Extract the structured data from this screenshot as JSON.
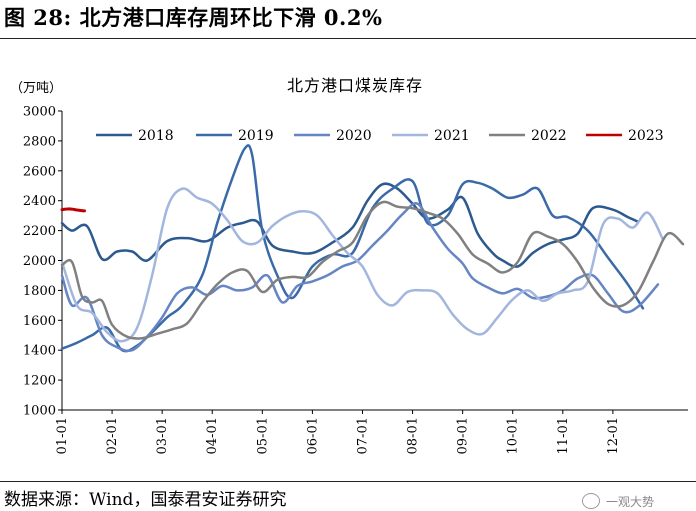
{
  "figure": {
    "label": "图 28:",
    "caption": "北方港口库存周环比下滑 0.2%",
    "source": "数据来源：Wind，国泰君安证券研究",
    "watermark": "一观大势"
  },
  "chart_data": {
    "type": "line",
    "title": "北方港口煤炭库存",
    "unit_label": "（万吨）",
    "xlabel": "",
    "ylabel": "",
    "ylim": [
      1000,
      3000
    ],
    "yticks": [
      1000,
      1200,
      1400,
      1600,
      1800,
      2000,
      2200,
      2400,
      2600,
      2800,
      3000
    ],
    "xlim": [
      1,
      13.5
    ],
    "xticks": [
      {
        "label": "01-01",
        "month": 1
      },
      {
        "label": "02-01",
        "month": 2
      },
      {
        "label": "03-01",
        "month": 3
      },
      {
        "label": "04-01",
        "month": 4
      },
      {
        "label": "05-01",
        "month": 5
      },
      {
        "label": "06-01",
        "month": 6
      },
      {
        "label": "07-01",
        "month": 7
      },
      {
        "label": "08-01",
        "month": 8
      },
      {
        "label": "09-01",
        "month": 9
      },
      {
        "label": "10-01",
        "month": 10
      },
      {
        "label": "11-01",
        "month": 11
      },
      {
        "label": "12-01",
        "month": 12
      }
    ],
    "grid": false,
    "legend_position": "top",
    "series": [
      {
        "name": "2018",
        "color": "#2c5a8f",
        "x": [
          1.0,
          1.2,
          1.5,
          1.8,
          2.1,
          2.4,
          2.7,
          3.1,
          3.5,
          3.9,
          4.3,
          4.6,
          4.9,
          5.2,
          5.6,
          6.0,
          6.4,
          6.8,
          7.1,
          7.4,
          7.7,
          8.0,
          8.3,
          8.7,
          9.0,
          9.3,
          9.6,
          9.8,
          10.1,
          10.4,
          10.7,
          11.0,
          11.3,
          11.6,
          12.0,
          12.3,
          12.5
        ],
        "values": [
          2250,
          2200,
          2230,
          2010,
          2060,
          2060,
          2000,
          2130,
          2150,
          2130,
          2220,
          2250,
          2260,
          2100,
          2060,
          2050,
          2120,
          2220,
          2400,
          2510,
          2480,
          2380,
          2280,
          2340,
          2420,
          2180,
          2050,
          2000,
          1960,
          2050,
          2110,
          2140,
          2180,
          2350,
          2340,
          2290,
          2260
        ]
      },
      {
        "name": "2019",
        "color": "#3a6aa8",
        "x": [
          1.0,
          1.3,
          1.6,
          1.9,
          2.2,
          2.5,
          2.8,
          3.1,
          3.4,
          3.8,
          4.1,
          4.4,
          4.65,
          4.8,
          5.0,
          5.3,
          5.6,
          6.0,
          6.4,
          6.8,
          7.2,
          7.6,
          8.0,
          8.3,
          8.7,
          9.0,
          9.3,
          9.6,
          9.9,
          10.2,
          10.5,
          10.8,
          11.1,
          11.5,
          11.9,
          12.3,
          12.6
        ],
        "values": [
          1410,
          1450,
          1500,
          1550,
          1400,
          1430,
          1520,
          1620,
          1700,
          1900,
          2250,
          2550,
          2750,
          2700,
          2200,
          1900,
          1750,
          1960,
          2040,
          2050,
          2350,
          2480,
          2530,
          2250,
          2300,
          2510,
          2520,
          2480,
          2420,
          2440,
          2480,
          2300,
          2290,
          2200,
          2020,
          1840,
          1680
        ]
      },
      {
        "name": "2020",
        "color": "#6685c4",
        "x": [
          1.0,
          1.2,
          1.5,
          1.8,
          2.1,
          2.4,
          2.7,
          3.0,
          3.3,
          3.6,
          3.9,
          4.2,
          4.5,
          4.8,
          5.1,
          5.4,
          5.7,
          6.0,
          6.3,
          6.6,
          6.9,
          7.2,
          7.5,
          7.8,
          8.1,
          8.4,
          8.7,
          9.0,
          9.2,
          9.5,
          9.8,
          10.1,
          10.4,
          10.7,
          11.0,
          11.3,
          11.6,
          11.9,
          12.2,
          12.5,
          12.9
        ],
        "values": [
          1900,
          1700,
          1750,
          1500,
          1420,
          1400,
          1490,
          1620,
          1780,
          1820,
          1770,
          1830,
          1800,
          1820,
          1900,
          1720,
          1830,
          1860,
          1900,
          1960,
          2000,
          2100,
          2200,
          2310,
          2380,
          2220,
          2080,
          1980,
          1880,
          1820,
          1780,
          1810,
          1750,
          1760,
          1800,
          1880,
          1900,
          1780,
          1660,
          1690,
          1840
        ]
      },
      {
        "name": "2021",
        "color": "#a3b6de",
        "x": [
          1.0,
          1.3,
          1.6,
          1.9,
          2.2,
          2.5,
          2.8,
          3.1,
          3.4,
          3.7,
          4.0,
          4.3,
          4.6,
          4.9,
          5.2,
          5.5,
          5.8,
          6.1,
          6.4,
          6.7,
          7.0,
          7.3,
          7.6,
          7.9,
          8.2,
          8.5,
          8.8,
          9.1,
          9.4,
          9.7,
          10.0,
          10.3,
          10.6,
          10.9,
          11.2,
          11.5,
          11.8,
          12.1,
          12.4,
          12.7,
          13.0
        ],
        "values": [
          1990,
          1700,
          1650,
          1520,
          1460,
          1550,
          1900,
          2350,
          2480,
          2420,
          2380,
          2270,
          2130,
          2120,
          2230,
          2300,
          2330,
          2300,
          2170,
          2050,
          1960,
          1770,
          1700,
          1790,
          1800,
          1780,
          1640,
          1540,
          1510,
          1620,
          1740,
          1800,
          1730,
          1780,
          1800,
          1860,
          2240,
          2280,
          2220,
          2320,
          2140
        ]
      },
      {
        "name": "2022",
        "color": "#808080",
        "x": [
          1.0,
          1.2,
          1.4,
          1.6,
          1.8,
          2.0,
          2.3,
          2.6,
          2.9,
          3.2,
          3.5,
          3.8,
          4.1,
          4.4,
          4.7,
          5.0,
          5.3,
          5.6,
          5.9,
          6.2,
          6.5,
          6.8,
          7.1,
          7.4,
          7.7,
          8.0,
          8.3,
          8.6,
          8.9,
          9.2,
          9.5,
          9.8,
          10.1,
          10.4,
          10.7,
          11.0,
          11.3,
          11.6,
          11.9,
          12.2,
          12.5,
          12.8,
          13.1,
          13.4
        ],
        "values": [
          1970,
          1990,
          1760,
          1720,
          1730,
          1570,
          1490,
          1480,
          1510,
          1540,
          1580,
          1720,
          1840,
          1920,
          1930,
          1790,
          1870,
          1890,
          1890,
          1990,
          2060,
          2120,
          2300,
          2390,
          2360,
          2350,
          2320,
          2280,
          2180,
          2040,
          1980,
          1920,
          1990,
          2180,
          2160,
          2110,
          1990,
          1820,
          1710,
          1700,
          1790,
          1990,
          2180,
          2110
        ]
      },
      {
        "name": "2023",
        "color": "#c00000",
        "x": [
          1.0,
          1.15,
          1.3,
          1.45
        ],
        "values": [
          2340,
          2345,
          2338,
          2332
        ]
      }
    ]
  }
}
